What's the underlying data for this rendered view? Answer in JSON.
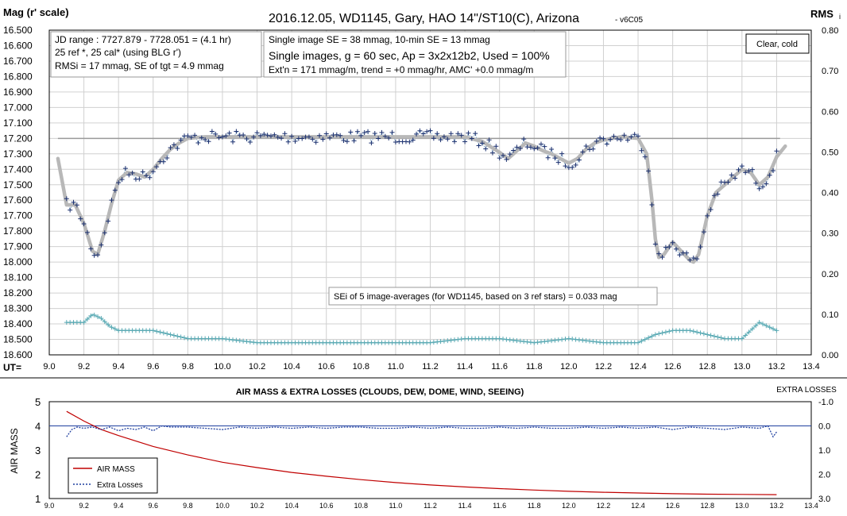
{
  "chart_data": [
    {
      "type": "scatter",
      "title": "2016.12.05,  WD1145, Gary, HAO  14\"/ST10(C), Arizona",
      "subtitle": "- v6C05",
      "ylabel_left": "Mag (r' scale)",
      "ylabel_right": "RMS",
      "ylabel_right_sub": "i",
      "xlabel": "UT=",
      "xlim": [
        9.0,
        13.4
      ],
      "ylim_left": [
        16.5,
        18.6
      ],
      "ylim_right": [
        0.0,
        0.8
      ],
      "left_reversed": true,
      "x_ticks": [
        "9.0",
        "9.2",
        "9.4",
        "9.6",
        "9.8",
        "10.0",
        "10.2",
        "10.4",
        "10.6",
        "10.8",
        "11.0",
        "11.2",
        "11.4",
        "11.6",
        "11.8",
        "12.0",
        "12.2",
        "12.4",
        "12.6",
        "12.8",
        "13.0",
        "13.2",
        "13.4"
      ],
      "y_ticks_left": [
        "16.500",
        "16.600",
        "16.700",
        "16.800",
        "16.900",
        "17.000",
        "17.100",
        "17.200",
        "17.300",
        "17.400",
        "17.500",
        "17.600",
        "17.700",
        "17.800",
        "17.900",
        "18.000",
        "18.100",
        "18.200",
        "18.300",
        "18.400",
        "18.500",
        "18.600"
      ],
      "y_ticks_right": [
        "0.80",
        "0.70",
        "0.60",
        "0.50",
        "0.40",
        "0.30",
        "0.20",
        "0.10",
        "0.00"
      ],
      "grid": true,
      "reference_mag": 17.2,
      "info_box_1": [
        "JD range  : 7727.879 - 7728.051 = (4.1 hr)",
        "25 ref *, 25 cal* (using BLG r')",
        "RMSi = 17 mmag, SE of tgt = 4.9 mmag"
      ],
      "info_box_2": [
        "Single image SE = 38 mmag, 10-min SE = 13 mmag",
        "Single images, g = 60 sec, Ap = 3x2x12b2, Used = 100%",
        "Ext'n = 171 mmag/m, trend = +0 mmag/hr, AMC' +0.0 mmag/m"
      ],
      "conditions": "Clear, cold",
      "annotation": "SEi of 5 image-averages (for WD1145, based on 3 ref stars) = 0.033 mag",
      "smoothed_mag": {
        "x": [
          9.05,
          9.1,
          9.15,
          9.2,
          9.25,
          9.28,
          9.32,
          9.36,
          9.4,
          9.45,
          9.5,
          9.55,
          9.6,
          9.65,
          9.7,
          9.75,
          9.8,
          9.9,
          10.0,
          10.2,
          10.4,
          10.6,
          10.8,
          11.0,
          11.2,
          11.4,
          11.5,
          11.6,
          11.65,
          11.7,
          11.75,
          11.8,
          11.85,
          11.9,
          11.95,
          12.0,
          12.05,
          12.1,
          12.15,
          12.2,
          12.3,
          12.4,
          12.45,
          12.48,
          12.5,
          12.52,
          12.55,
          12.6,
          12.65,
          12.7,
          12.72,
          12.75,
          12.8,
          12.85,
          12.9,
          12.95,
          13.0,
          13.05,
          13.1,
          13.15,
          13.2,
          13.25
        ],
        "y": [
          17.33,
          17.63,
          17.63,
          17.75,
          17.93,
          17.95,
          17.8,
          17.62,
          17.47,
          17.42,
          17.43,
          17.45,
          17.4,
          17.33,
          17.27,
          17.23,
          17.2,
          17.19,
          17.19,
          17.19,
          17.19,
          17.19,
          17.19,
          17.19,
          17.19,
          17.19,
          17.22,
          17.29,
          17.33,
          17.28,
          17.23,
          17.25,
          17.28,
          17.3,
          17.33,
          17.36,
          17.33,
          17.27,
          17.23,
          17.21,
          17.19,
          17.2,
          17.3,
          17.6,
          17.85,
          17.97,
          17.95,
          17.87,
          17.93,
          17.99,
          18.0,
          17.95,
          17.7,
          17.55,
          17.5,
          17.45,
          17.4,
          17.42,
          17.5,
          17.45,
          17.32,
          17.25
        ]
      },
      "rms_band": {
        "x": [
          9.1,
          9.15,
          9.2,
          9.25,
          9.3,
          9.35,
          9.4,
          9.5,
          9.6,
          9.7,
          9.8,
          10.0,
          10.2,
          10.4,
          10.6,
          10.8,
          11.0,
          11.2,
          11.4,
          11.6,
          11.8,
          12.0,
          12.2,
          12.4,
          12.5,
          12.6,
          12.7,
          12.8,
          12.9,
          13.0,
          13.05,
          13.1,
          13.15,
          13.2
        ],
        "y": [
          0.08,
          0.08,
          0.08,
          0.1,
          0.09,
          0.07,
          0.06,
          0.06,
          0.06,
          0.05,
          0.04,
          0.04,
          0.03,
          0.03,
          0.03,
          0.03,
          0.03,
          0.03,
          0.04,
          0.04,
          0.03,
          0.04,
          0.03,
          0.03,
          0.05,
          0.06,
          0.06,
          0.05,
          0.04,
          0.04,
          0.06,
          0.08,
          0.07,
          0.06
        ]
      }
    },
    {
      "type": "line",
      "title": "AIR MASS & EXTRA LOSSES (CLOUDS, DEW, DOME, WIND, SEEING)",
      "ylabel_left": "AIR MASS",
      "ylabel_right": "EXTRA LOSSES",
      "xlim": [
        9.0,
        13.4
      ],
      "ylim_left": [
        1,
        5
      ],
      "ylim_right": [
        -1.0,
        3.0
      ],
      "x_ticks": [
        "9.0",
        "9.2",
        "9.4",
        "9.6",
        "9.8",
        "10.0",
        "10.2",
        "10.4",
        "10.6",
        "10.8",
        "11.0",
        "11.2",
        "11.4",
        "11.6",
        "11.8",
        "12.0",
        "12.2",
        "12.4",
        "12.6",
        "12.8",
        "13.0",
        "13.2",
        "13.4"
      ],
      "y_ticks_left": [
        "5",
        "4",
        "3",
        "2",
        "1"
      ],
      "y_ticks_right": [
        "-1.0",
        "0.0",
        "1.0",
        "2.0",
        "3.0"
      ],
      "legend": [
        "AIR MASS",
        "Extra Losses"
      ],
      "legend_position": "bottom-left",
      "series": [
        {
          "name": "AIR MASS",
          "color": "#c00000",
          "x": [
            9.1,
            9.2,
            9.3,
            9.4,
            9.6,
            9.8,
            10.0,
            10.2,
            10.4,
            10.6,
            10.8,
            11.0,
            11.2,
            11.4,
            11.6,
            11.8,
            12.0,
            12.2,
            12.4,
            12.6,
            12.8,
            13.0,
            13.2
          ],
          "y": [
            4.6,
            4.2,
            3.85,
            3.6,
            3.15,
            2.8,
            2.5,
            2.28,
            2.08,
            1.92,
            1.78,
            1.66,
            1.56,
            1.48,
            1.41,
            1.35,
            1.3,
            1.26,
            1.23,
            1.2,
            1.18,
            1.17,
            1.16
          ]
        },
        {
          "name": "Extra Losses",
          "color": "#1f3f9f",
          "x": [
            9.1,
            9.13,
            9.16,
            9.2,
            9.25,
            9.3,
            9.35,
            9.4,
            9.45,
            9.5,
            9.55,
            9.6,
            9.65,
            9.7,
            9.8,
            9.9,
            10.0,
            10.1,
            10.2,
            10.3,
            10.4,
            10.5,
            10.6,
            10.7,
            10.8,
            10.9,
            11.0,
            11.1,
            11.2,
            11.3,
            11.4,
            11.5,
            11.6,
            11.7,
            11.8,
            11.9,
            12.0,
            12.1,
            12.2,
            12.3,
            12.4,
            12.5,
            12.6,
            12.7,
            12.8,
            12.9,
            13.0,
            13.1,
            13.15,
            13.18,
            13.2
          ],
          "y": [
            0.45,
            0.15,
            0.05,
            0.1,
            0.05,
            0.15,
            0.05,
            0.2,
            0.1,
            0.15,
            0.05,
            0.2,
            0.0,
            0.05,
            0.05,
            0.1,
            0.15,
            0.05,
            0.1,
            0.05,
            0.1,
            0.05,
            0.1,
            0.05,
            0.05,
            0.1,
            0.1,
            0.05,
            0.1,
            0.05,
            0.1,
            0.1,
            0.05,
            0.1,
            0.05,
            0.1,
            0.1,
            0.05,
            0.1,
            0.05,
            0.1,
            0.05,
            0.15,
            0.05,
            0.1,
            0.15,
            0.05,
            0.1,
            0.0,
            0.45,
            0.25
          ]
        }
      ]
    }
  ]
}
